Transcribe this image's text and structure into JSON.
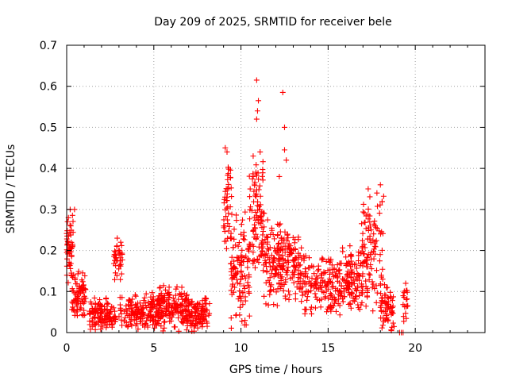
{
  "chart_data": {
    "type": "scatter",
    "title": "Day 209 of 2025, SRMTID for receiver bele",
    "xlabel": "GPS time / hours",
    "ylabel": "SRMTID / TECUs",
    "xlim": [
      0,
      24
    ],
    "ylim": [
      0,
      0.7
    ],
    "xticks": [
      0,
      5,
      10,
      15,
      20
    ],
    "yticks": [
      0,
      0.1,
      0.2,
      0.3,
      0.4,
      0.5,
      0.6,
      0.7
    ],
    "grid": true,
    "marker": "+",
    "color": "#ff0000",
    "series": [
      {
        "name": "SRMTID",
        "clusters": [
          {
            "x": [
              0.0,
              0.4
            ],
            "y": [
              0.1,
              0.3
            ],
            "n": 50
          },
          {
            "x": [
              0.3,
              1.1
            ],
            "y": [
              0.02,
              0.16
            ],
            "n": 80
          },
          {
            "x": [
              1.3,
              2.8
            ],
            "y": [
              0.0,
              0.09
            ],
            "n": 130
          },
          {
            "x": [
              2.7,
              3.2
            ],
            "y": [
              0.12,
              0.23
            ],
            "n": 35
          },
          {
            "x": [
              3.0,
              5.3
            ],
            "y": [
              0.0,
              0.1
            ],
            "n": 170
          },
          {
            "x": [
              5.2,
              6.9
            ],
            "y": [
              0.0,
              0.12
            ],
            "n": 150
          },
          {
            "x": [
              6.8,
              8.2
            ],
            "y": [
              0.0,
              0.09
            ],
            "n": 120
          },
          {
            "x": [
              9.0,
              9.5
            ],
            "y": [
              0.2,
              0.45
            ],
            "n": 45
          },
          {
            "x": [
              9.4,
              10.5
            ],
            "y": [
              0.0,
              0.3
            ],
            "n": 110
          },
          {
            "x": [
              10.4,
              11.3
            ],
            "y": [
              0.1,
              0.44
            ],
            "n": 100
          },
          {
            "x": [
              11.3,
              12.4
            ],
            "y": [
              0.05,
              0.3
            ],
            "n": 110
          },
          {
            "x": [
              12.2,
              13.5
            ],
            "y": [
              0.05,
              0.26
            ],
            "n": 110
          },
          {
            "x": [
              13.5,
              15.5
            ],
            "y": [
              0.04,
              0.2
            ],
            "n": 140
          },
          {
            "x": [
              15.5,
              17.0
            ],
            "y": [
              0.04,
              0.22
            ],
            "n": 140
          },
          {
            "x": [
              16.9,
              18.2
            ],
            "y": [
              0.03,
              0.35
            ],
            "n": 110
          },
          {
            "x": [
              18.0,
              18.8
            ],
            "y": [
              0.0,
              0.13
            ],
            "n": 60
          },
          {
            "x": [
              19.3,
              19.6
            ],
            "y": [
              0.01,
              0.12
            ],
            "n": 20
          }
        ],
        "points": [
          [
            0.1,
            0.28
          ],
          [
            0.2,
            0.3
          ],
          [
            0.45,
            0.3
          ],
          [
            0.05,
            0.27
          ],
          [
            2.9,
            0.23
          ],
          [
            3.1,
            0.22
          ],
          [
            9.1,
            0.45
          ],
          [
            9.2,
            0.44
          ],
          [
            10.7,
            0.43
          ],
          [
            10.9,
            0.52
          ],
          [
            10.95,
            0.54
          ],
          [
            11.0,
            0.565
          ],
          [
            10.9,
            0.615
          ],
          [
            11.1,
            0.44
          ],
          [
            12.4,
            0.585
          ],
          [
            12.5,
            0.5
          ],
          [
            12.5,
            0.445
          ],
          [
            12.6,
            0.42
          ],
          [
            12.2,
            0.38
          ],
          [
            17.3,
            0.35
          ],
          [
            18.0,
            0.36
          ],
          [
            17.8,
            0.34
          ],
          [
            19.3,
            0.0
          ],
          [
            19.2,
            0.0
          ],
          [
            19.1,
            0.0
          ],
          [
            19.45,
            0.12
          ]
        ]
      }
    ]
  }
}
